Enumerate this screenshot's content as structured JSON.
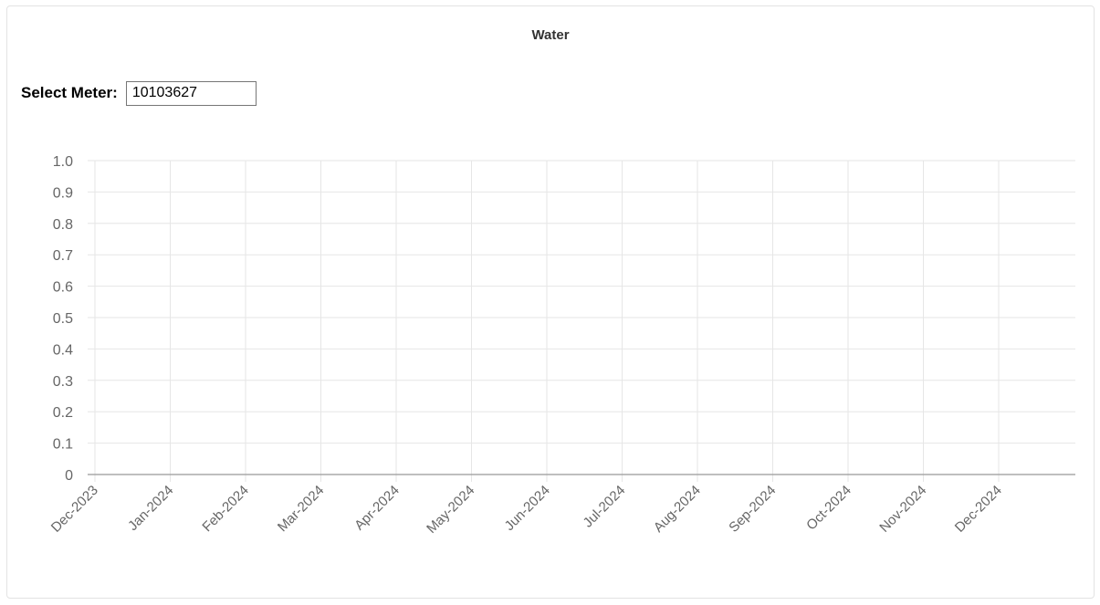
{
  "panel": {
    "title": "Water"
  },
  "meter_selector": {
    "label": "Select Meter:",
    "value": "10103627"
  },
  "colors": {
    "grid": "#e6e6e6",
    "axis": "#999999",
    "tick_text": "#666666"
  },
  "chart_data": {
    "type": "line",
    "title": "",
    "xlabel": "",
    "ylabel": "",
    "categories": [
      "Dec-2023",
      "Jan-2024",
      "Feb-2024",
      "Mar-2024",
      "Apr-2024",
      "May-2024",
      "Jun-2024",
      "Jul-2024",
      "Aug-2024",
      "Sep-2024",
      "Oct-2024",
      "Nov-2024",
      "Dec-2024"
    ],
    "series": [],
    "ylim": [
      0,
      1
    ],
    "yticks": [
      "1.0",
      "0.9",
      "0.8",
      "0.7",
      "0.6",
      "0.5",
      "0.4",
      "0.3",
      "0.2",
      "0.1",
      "0"
    ],
    "grid": true,
    "legend": "none"
  }
}
